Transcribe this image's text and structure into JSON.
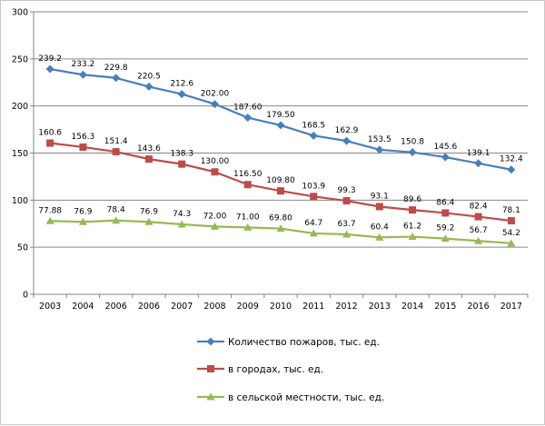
{
  "chart_data": {
    "type": "line",
    "title": "",
    "xlabel": "",
    "ylabel": "",
    "ylim": [
      0,
      300
    ],
    "yticks": [
      "0",
      "50",
      "100",
      "150",
      "200",
      "250",
      "300"
    ],
    "grid": true,
    "legend_position": "bottom",
    "categories": [
      "2003",
      "2004",
      "2006",
      "2006",
      "2007",
      "2008",
      "2009",
      "2010",
      "2011",
      "2012",
      "2013",
      "2014",
      "2015",
      "2016",
      "2017"
    ],
    "series": [
      {
        "name": "Количество пожаров, тыс. ед.",
        "color": "#4a7ebb",
        "marker": "diamond",
        "values": [
          239.2,
          233.2,
          229.8,
          220.5,
          212.6,
          202.0,
          187.6,
          179.5,
          168.5,
          162.9,
          153.5,
          150.8,
          145.6,
          139.1,
          132.4
        ],
        "labels": [
          "239.2",
          "233.2",
          "229.8",
          "220.5",
          "212.6",
          "202.00",
          "187.60",
          "179.50",
          "168.5",
          "162.9",
          "153.5",
          "150.8",
          "145.6",
          "139.1",
          "132.4"
        ]
      },
      {
        "name": "в городах, тыс. ед.",
        "color": "#be4b48",
        "marker": "square",
        "values": [
          160.6,
          156.3,
          151.4,
          143.6,
          138.3,
          130.0,
          116.5,
          109.8,
          103.9,
          99.3,
          93.1,
          89.6,
          86.4,
          82.4,
          78.1
        ],
        "labels": [
          "160.6",
          "156.3",
          "151.4",
          "143.6",
          "138.3",
          "130.00",
          "116.50",
          "109.80",
          "103.9",
          "99.3",
          "93.1",
          "89.6",
          "86.4",
          "82.4",
          "78.1"
        ]
      },
      {
        "name": "в сельской местности, тыс. ед.",
        "color": "#98b954",
        "marker": "triangle",
        "values": [
          77.88,
          76.9,
          78.4,
          76.9,
          74.3,
          72.0,
          71.0,
          69.8,
          64.7,
          63.7,
          60.4,
          61.2,
          59.2,
          56.7,
          54.2
        ],
        "labels": [
          "77.88",
          "76.9",
          "78.4",
          "76.9",
          "74.3",
          "72.00",
          "71.00",
          "69.80",
          "64.7",
          "63.7",
          "60.4",
          "61.2",
          "59.2",
          "56.7",
          "54.2"
        ]
      }
    ]
  }
}
